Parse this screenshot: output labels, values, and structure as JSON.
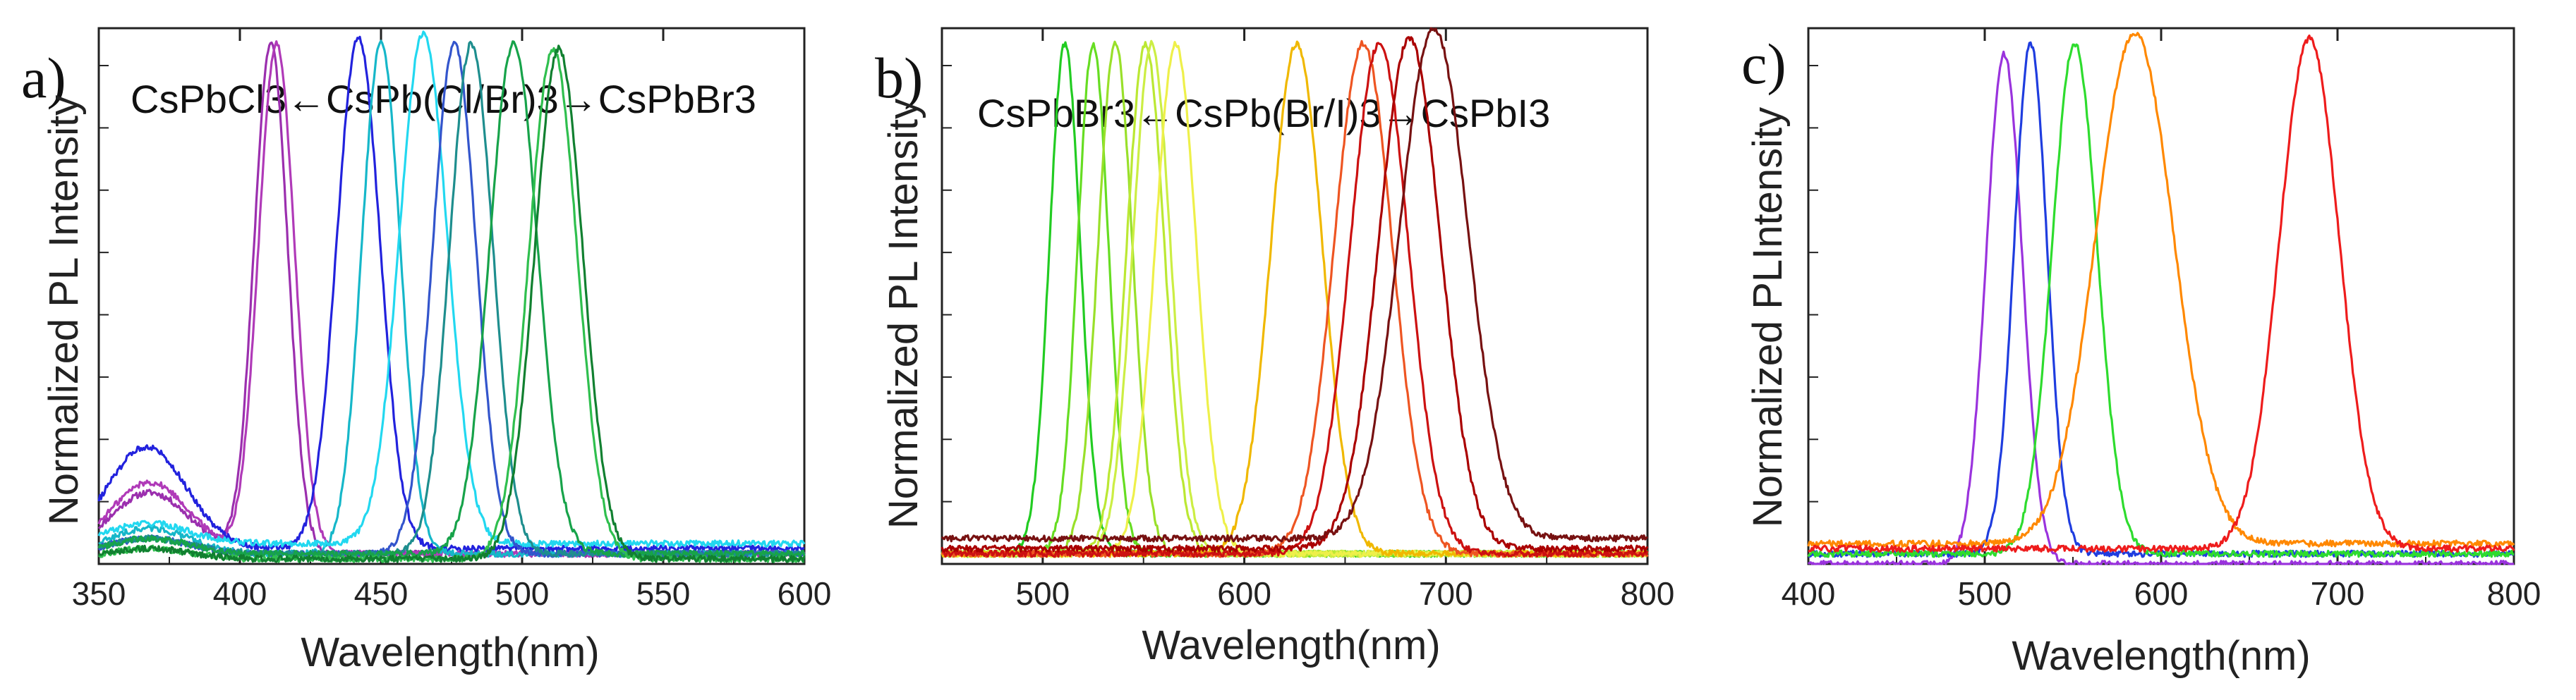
{
  "chart_data": [
    {
      "type": "line",
      "panel_label": "a)",
      "title_parts": {
        "left": "CsPbCl3",
        "left_arrow": "←",
        "middle": "CsPb(Cl/Br)3",
        "right_arrow": "→",
        "right": "CsPbBr3"
      },
      "xlabel": "Wavelength(nm)",
      "ylabel": "Normalized PL Intensity",
      "xlim": [
        350,
        600
      ],
      "ylim": [
        0,
        1.05
      ],
      "xticks": [
        350,
        400,
        450,
        500,
        550,
        600
      ],
      "xtick_labels": [
        "350",
        "400",
        "450",
        "500",
        "550",
        "600"
      ],
      "y_tick_labels": false,
      "series": [
        {
          "name": "a1",
          "color": "#9b2fae",
          "peak": 411,
          "fwhm": 14,
          "baseline": 0.02,
          "shoulder": {
            "center": 368,
            "amp": 0.12,
            "width": 14
          }
        },
        {
          "name": "a2",
          "color": "#b03ab8",
          "peak": 413,
          "fwhm": 15,
          "baseline": 0.02,
          "shoulder": {
            "center": 368,
            "amp": 0.14,
            "width": 14
          }
        },
        {
          "name": "a3",
          "color": "#2222dd",
          "peak": 442,
          "fwhm": 18,
          "baseline": 0.03,
          "shoulder": {
            "center": 367,
            "amp": 0.2,
            "width": 14
          }
        },
        {
          "name": "a4",
          "color": "#16b7c9",
          "peak": 450,
          "fwhm": 16,
          "baseline": 0.02,
          "shoulder": {
            "center": 368,
            "amp": 0.05,
            "width": 14
          }
        },
        {
          "name": "a5",
          "color": "#22d8f0",
          "peak": 465,
          "fwhm": 20,
          "baseline": 0.04,
          "shoulder": {
            "center": 368,
            "amp": 0.04,
            "width": 14
          }
        },
        {
          "name": "a6",
          "color": "#3355cc",
          "peak": 476,
          "fwhm": 18,
          "baseline": 0.02,
          "shoulder": {
            "center": 368,
            "amp": 0.03,
            "width": 14
          }
        },
        {
          "name": "a7",
          "color": "#1e8e8e",
          "peak": 482,
          "fwhm": 18,
          "baseline": 0.02,
          "shoulder": {
            "center": 368,
            "amp": 0.03,
            "width": 14
          }
        },
        {
          "name": "a8",
          "color": "#17a34a",
          "peak": 497,
          "fwhm": 20,
          "baseline": 0.02,
          "shoulder": {
            "center": 368,
            "amp": 0.03,
            "width": 14
          }
        },
        {
          "name": "a9",
          "color": "#2fbf4e",
          "peak": 511,
          "fwhm": 20,
          "baseline": 0.01,
          "shoulder": {
            "center": 368,
            "amp": 0.02,
            "width": 14
          }
        },
        {
          "name": "a10",
          "color": "#118030",
          "peak": 513,
          "fwhm": 20,
          "baseline": 0.01,
          "shoulder": {
            "center": 368,
            "amp": 0.02,
            "width": 14
          }
        }
      ]
    },
    {
      "type": "line",
      "panel_label": "b)",
      "title_parts": {
        "left": "CsPbBr3",
        "left_arrow": "←",
        "middle": "CsPb(Br/I)3",
        "right_arrow": "→",
        "right": "CsPbI3"
      },
      "xlabel": "Wavelength(nm)",
      "ylabel": "Normalized PL Intensity",
      "xlim": [
        450,
        800
      ],
      "ylim": [
        0,
        1.05
      ],
      "xticks": [
        500,
        600,
        700,
        800
      ],
      "xtick_labels": [
        "500",
        "600",
        "700",
        "800"
      ],
      "y_tick_labels": false,
      "series": [
        {
          "name": "b1",
          "color": "#22cc22",
          "peak": 511,
          "fwhm": 18,
          "baseline": 0.02
        },
        {
          "name": "b2",
          "color": "#66dd22",
          "peak": 525,
          "fwhm": 18,
          "baseline": 0.02
        },
        {
          "name": "b3",
          "color": "#99e02a",
          "peak": 536,
          "fwhm": 20,
          "baseline": 0.02
        },
        {
          "name": "b4",
          "color": "#bbe833",
          "peak": 551,
          "fwhm": 22,
          "baseline": 0.02
        },
        {
          "name": "b5",
          "color": "#ccee44",
          "peak": 554,
          "fwhm": 22,
          "baseline": 0.02
        },
        {
          "name": "b6",
          "color": "#eef04a",
          "peak": 566,
          "fwhm": 24,
          "baseline": 0.02
        },
        {
          "name": "b7",
          "color": "#f0b800",
          "peak": 626,
          "fwhm": 30,
          "baseline": 0.02
        },
        {
          "name": "b8",
          "color": "#ee5522",
          "peak": 659,
          "fwhm": 34,
          "baseline": 0.02
        },
        {
          "name": "b9",
          "color": "#cc1111",
          "peak": 667,
          "fwhm": 34,
          "baseline": 0.02
        },
        {
          "name": "b10",
          "color": "#aa0000",
          "peak": 682,
          "fwhm": 36,
          "baseline": 0.03
        },
        {
          "name": "b11",
          "color": "#771111",
          "peak": 694,
          "fwhm": 40,
          "baseline": 0.05
        }
      ]
    },
    {
      "type": "line",
      "panel_label": "c)",
      "xlabel": "Wavelength(nm)",
      "ylabel": "Normalized PLIntensity",
      "xlim": [
        400,
        800
      ],
      "ylim": [
        0,
        1.05
      ],
      "xticks": [
        400,
        500,
        600,
        700,
        800
      ],
      "xtick_labels": [
        "400",
        "500",
        "600",
        "700",
        "800"
      ],
      "y_tick_labels": false,
      "series": [
        {
          "name": "c1",
          "color": "#9a33dd",
          "peak": 511,
          "fwhm": 24,
          "baseline": 0.0
        },
        {
          "name": "c2",
          "color": "#1f3ddf",
          "peak": 526,
          "fwhm": 22,
          "baseline": 0.02
        },
        {
          "name": "c3",
          "color": "#2edc2e",
          "peak": 551,
          "fwhm": 30,
          "baseline": 0.02
        },
        {
          "name": "c4",
          "color": "#ff8800",
          "peak": 585,
          "fwhm": 52,
          "baseline": 0.04
        },
        {
          "name": "c5",
          "color": "#ee1c1c",
          "peak": 684,
          "fwhm": 40,
          "baseline": 0.03
        }
      ]
    }
  ]
}
